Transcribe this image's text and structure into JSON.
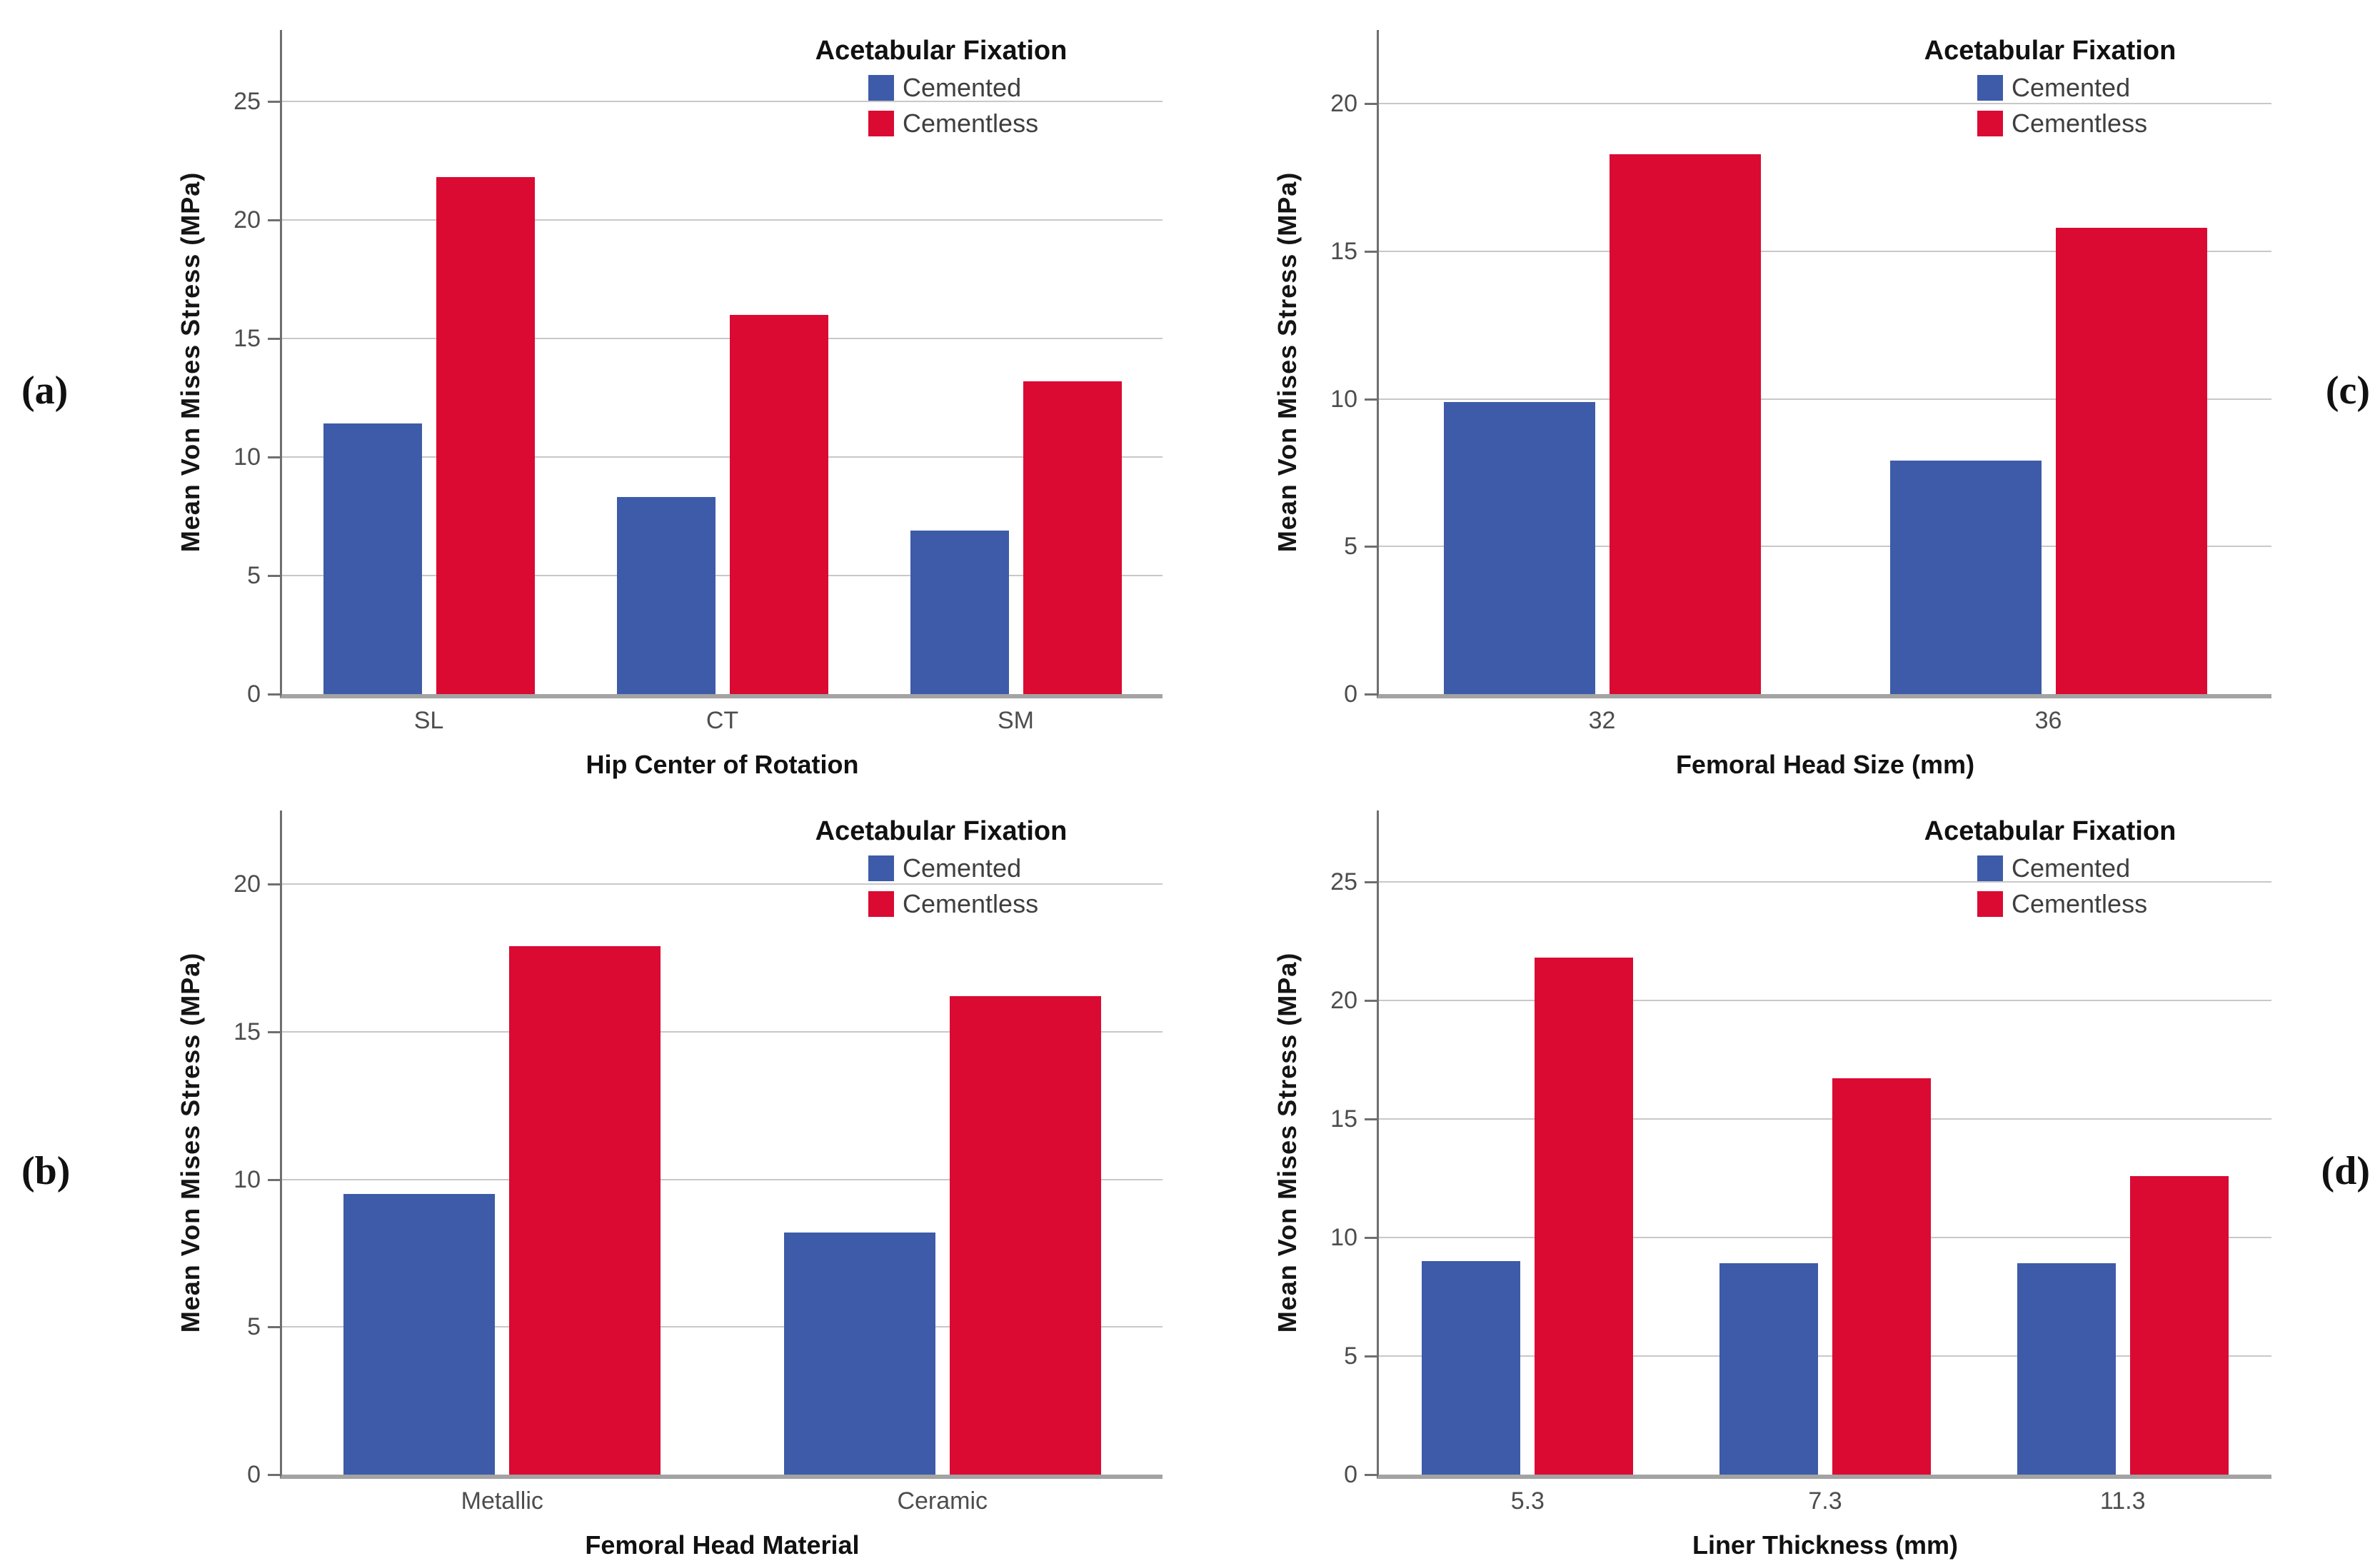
{
  "figure": {
    "legend_title": "Acetabular Fixation",
    "series": [
      {
        "name": "Cemented",
        "color": "#3D5BA8"
      },
      {
        "name": "Cementless",
        "color": "#DA0A33"
      }
    ],
    "colors": {
      "grid": "#C8C8C8",
      "y_axis_line": "#6F6F6F",
      "baseline": "#A3A3A3",
      "tick_label": "#4D4D4D",
      "background": "#FFFFFF"
    }
  },
  "chart_data": [
    {
      "id": "a",
      "panel_label": "(a)",
      "type": "bar",
      "letter_side": "left",
      "title": "",
      "xlabel": "Hip Center of Rotation",
      "ylabel": "Mean Von Mises Stress (MPa)",
      "categories": [
        "SL",
        "CT",
        "SM"
      ],
      "series": [
        {
          "name": "Cemented",
          "values": [
            11.4,
            8.3,
            6.9
          ]
        },
        {
          "name": "Cementless",
          "values": [
            21.8,
            16.0,
            13.2
          ]
        }
      ],
      "yticks": [
        0,
        5,
        10,
        15,
        20,
        25
      ],
      "ylim": [
        0,
        28
      ],
      "grid": true,
      "legend_position": "top-right"
    },
    {
      "id": "c",
      "panel_label": "(c)",
      "type": "bar",
      "letter_side": "right",
      "title": "",
      "xlabel": "Femoral Head Size (mm)",
      "ylabel": "Mean Von Mises Stress (MPa)",
      "categories": [
        "32",
        "36"
      ],
      "series": [
        {
          "name": "Cemented",
          "values": [
            9.9,
            7.9
          ]
        },
        {
          "name": "Cementless",
          "values": [
            18.3,
            15.8
          ]
        }
      ],
      "yticks": [
        0,
        5,
        10,
        15,
        20
      ],
      "ylim": [
        0,
        22.5
      ],
      "grid": true,
      "legend_position": "top-right"
    },
    {
      "id": "b",
      "panel_label": "(b)",
      "type": "bar",
      "letter_side": "left",
      "title": "",
      "xlabel": "Femoral Head Material",
      "ylabel": "Mean Von Mises Stress (MPa)",
      "categories": [
        "Metallic",
        "Ceramic"
      ],
      "series": [
        {
          "name": "Cemented",
          "values": [
            9.5,
            8.2
          ]
        },
        {
          "name": "Cementless",
          "values": [
            17.9,
            16.2
          ]
        }
      ],
      "yticks": [
        0,
        5,
        10,
        15,
        20
      ],
      "ylim": [
        0,
        22.5
      ],
      "grid": true,
      "legend_position": "top-right"
    },
    {
      "id": "d",
      "panel_label": "(d)",
      "type": "bar",
      "letter_side": "right",
      "title": "",
      "xlabel": "Liner Thickness (mm)",
      "ylabel": "Mean Von Mises Stress (MPa)",
      "categories": [
        "5.3",
        "7.3",
        "11.3"
      ],
      "series": [
        {
          "name": "Cemented",
          "values": [
            9.0,
            8.9,
            8.9
          ]
        },
        {
          "name": "Cementless",
          "values": [
            21.8,
            16.7,
            12.6
          ]
        }
      ],
      "yticks": [
        0,
        5,
        10,
        15,
        20,
        25
      ],
      "ylim": [
        0,
        28
      ],
      "grid": true,
      "legend_position": "top-right"
    }
  ]
}
